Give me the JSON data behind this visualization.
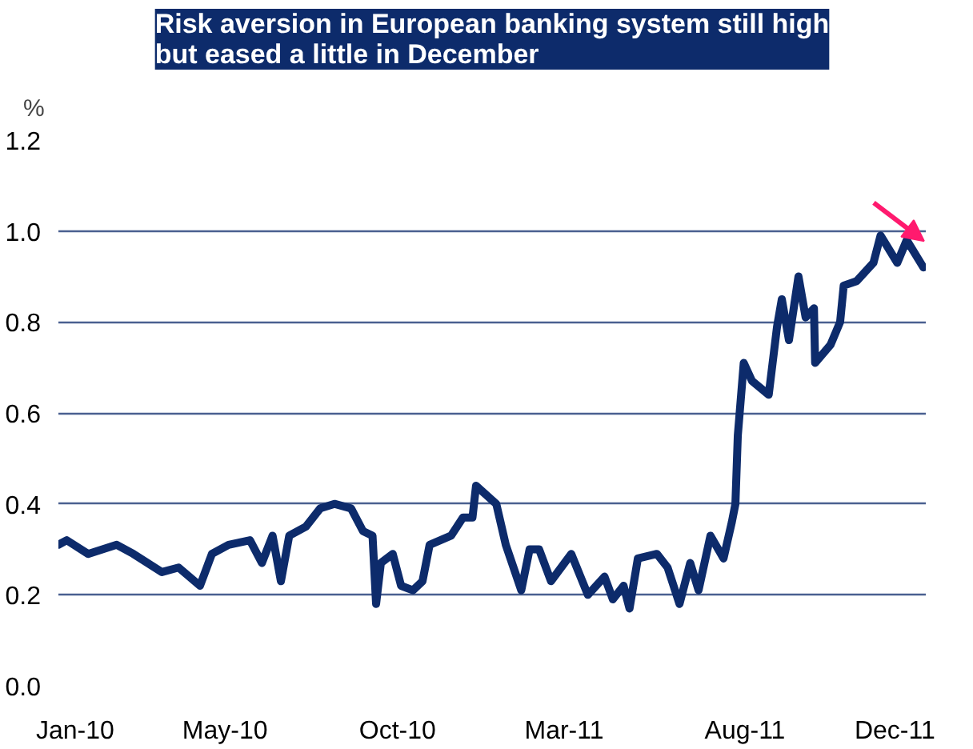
{
  "chart_data": {
    "type": "line",
    "title": "Risk aversion in European banking system still high\nbut eased a little in December",
    "ylabel": "%",
    "x": [
      "2010-01-01",
      "2010-01-08",
      "2010-01-26",
      "2010-02-19",
      "2010-03-05",
      "2010-03-29",
      "2010-04-12",
      "2010-04-30",
      "2010-05-10",
      "2010-05-24",
      "2010-06-11",
      "2010-06-21",
      "2010-06-30",
      "2010-07-07",
      "2010-07-14",
      "2010-07-28",
      "2010-08-09",
      "2010-08-21",
      "2010-09-04",
      "2010-09-14",
      "2010-09-22",
      "2010-09-25",
      "2010-09-29",
      "2010-10-09",
      "2010-10-16",
      "2010-10-26",
      "2010-11-03",
      "2010-11-09",
      "2010-11-27",
      "2010-12-07",
      "2010-12-15",
      "2010-12-18",
      "2011-01-04",
      "2011-01-12",
      "2011-01-25",
      "2011-02-01",
      "2011-02-09",
      "2011-02-19",
      "2011-03-08",
      "2011-03-22",
      "2011-04-05",
      "2011-04-12",
      "2011-04-21",
      "2011-04-26",
      "2011-05-03",
      "2011-05-19",
      "2011-05-28",
      "2011-06-07",
      "2011-06-16",
      "2011-06-23",
      "2011-07-03",
      "2011-07-14",
      "2011-07-21",
      "2011-07-24",
      "2011-07-26",
      "2011-07-31",
      "2011-08-07",
      "2011-08-21",
      "2011-08-28",
      "2011-09-01",
      "2011-09-07",
      "2011-09-15",
      "2011-09-21",
      "2011-09-28",
      "2011-09-29",
      "2011-10-12",
      "2011-10-20",
      "2011-10-23",
      "2011-11-03",
      "2011-11-17",
      "2011-11-23",
      "2011-12-07",
      "2011-12-15",
      "2011-12-29"
    ],
    "series": [
      {
        "color": "#0d2b6b",
        "values": [
          0.31,
          0.32,
          0.29,
          0.31,
          0.29,
          0.25,
          0.26,
          0.22,
          0.29,
          0.31,
          0.32,
          0.27,
          0.33,
          0.23,
          0.33,
          0.35,
          0.39,
          0.4,
          0.39,
          0.34,
          0.33,
          0.18,
          0.27,
          0.29,
          0.22,
          0.21,
          0.23,
          0.31,
          0.33,
          0.37,
          0.37,
          0.44,
          0.4,
          0.31,
          0.21,
          0.3,
          0.3,
          0.23,
          0.29,
          0.2,
          0.24,
          0.19,
          0.22,
          0.17,
          0.28,
          0.29,
          0.26,
          0.18,
          0.27,
          0.21,
          0.33,
          0.28,
          0.36,
          0.4,
          0.55,
          0.71,
          0.67,
          0.64,
          0.79,
          0.85,
          0.76,
          0.9,
          0.81,
          0.83,
          0.71,
          0.75,
          0.8,
          0.88,
          0.89,
          0.93,
          0.99,
          0.93,
          0.98,
          0.92
        ]
      }
    ],
    "xlim": [
      "2010-01-01",
      "2011-12-31"
    ],
    "xticks": [
      {
        "value": "2010-01-15",
        "label": "Jan-10"
      },
      {
        "value": "2010-05-21",
        "label": "May-10"
      },
      {
        "value": "2010-10-13",
        "label": "Oct-10"
      },
      {
        "value": "2011-03-02",
        "label": "Mar-11"
      },
      {
        "value": "2011-08-01",
        "label": "Aug-11"
      },
      {
        "value": "2011-12-05",
        "label": "Dec-11"
      }
    ],
    "ylim": [
      0,
      1.2
    ],
    "yticks": [
      {
        "value": 0,
        "label": "0.0"
      },
      {
        "value": 0.2,
        "label": "0.2"
      },
      {
        "value": 0.4,
        "label": "0.4"
      },
      {
        "value": 0.6,
        "label": "0.6"
      },
      {
        "value": 0.8,
        "label": "0.8"
      },
      {
        "value": 1.0,
        "label": "1.0"
      },
      {
        "value": 1.2,
        "label": "1.2"
      }
    ],
    "grid": "y",
    "marker": "none",
    "line_style": "solid"
  }
}
